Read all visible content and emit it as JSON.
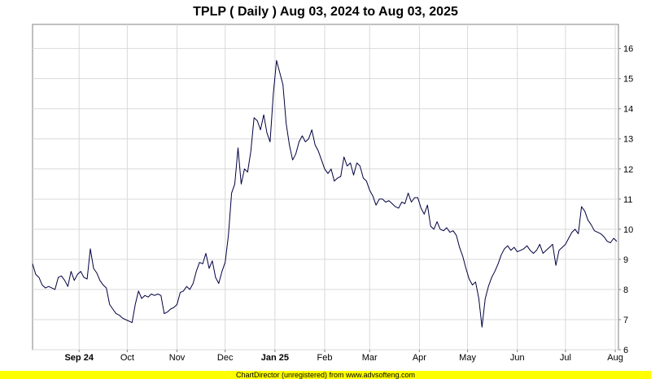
{
  "chart_data": {
    "type": "line",
    "title": "TPLP ( Daily ) Aug 03, 2024 to Aug 03, 2025",
    "xlabel": "",
    "ylabel": "",
    "ylim": [
      6,
      16.8
    ],
    "xlim": [
      "2024-08-03",
      "2025-08-03"
    ],
    "yticks": [
      "6",
      "7",
      "8",
      "9",
      "10",
      "11",
      "12",
      "13",
      "14",
      "15",
      "16"
    ],
    "xticks": [
      {
        "label": "Sep 24",
        "date": "2024-09-01",
        "bold": true
      },
      {
        "label": "Oct",
        "date": "2024-10-01",
        "bold": false
      },
      {
        "label": "Nov",
        "date": "2024-11-01",
        "bold": false
      },
      {
        "label": "Dec",
        "date": "2024-12-01",
        "bold": false
      },
      {
        "label": "Jan 25",
        "date": "2025-01-01",
        "bold": true
      },
      {
        "label": "Feb",
        "date": "2025-02-01",
        "bold": false
      },
      {
        "label": "Mar",
        "date": "2025-03-01",
        "bold": false
      },
      {
        "label": "Apr",
        "date": "2025-04-01",
        "bold": false
      },
      {
        "label": "May",
        "date": "2025-05-01",
        "bold": false
      },
      {
        "label": "Jun",
        "date": "2025-06-01",
        "bold": false
      },
      {
        "label": "Jul",
        "date": "2025-07-01",
        "bold": false
      },
      {
        "label": "Aug",
        "date": "2025-08-01",
        "bold": false
      }
    ],
    "grid": true,
    "line_color": "#000040",
    "series": [
      {
        "name": "",
        "x": [
          "2024-08-03",
          "2024-08-05",
          "2024-08-07",
          "2024-08-09",
          "2024-08-11",
          "2024-08-13",
          "2024-08-15",
          "2024-08-17",
          "2024-08-19",
          "2024-08-21",
          "2024-08-23",
          "2024-08-25",
          "2024-08-27",
          "2024-08-29",
          "2024-08-31",
          "2024-09-02",
          "2024-09-04",
          "2024-09-06",
          "2024-09-08",
          "2024-09-10",
          "2024-09-12",
          "2024-09-14",
          "2024-09-16",
          "2024-09-18",
          "2024-09-20",
          "2024-09-22",
          "2024-09-24",
          "2024-09-26",
          "2024-09-28",
          "2024-09-30",
          "2024-10-02",
          "2024-10-04",
          "2024-10-06",
          "2024-10-08",
          "2024-10-10",
          "2024-10-12",
          "2024-10-14",
          "2024-10-16",
          "2024-10-18",
          "2024-10-20",
          "2024-10-22",
          "2024-10-24",
          "2024-10-26",
          "2024-10-28",
          "2024-10-30",
          "2024-11-01",
          "2024-11-03",
          "2024-11-05",
          "2024-11-07",
          "2024-11-09",
          "2024-11-11",
          "2024-11-13",
          "2024-11-15",
          "2024-11-17",
          "2024-11-19",
          "2024-11-21",
          "2024-11-23",
          "2024-11-25",
          "2024-11-27",
          "2024-11-29",
          "2024-12-01",
          "2024-12-03",
          "2024-12-05",
          "2024-12-07",
          "2024-12-09",
          "2024-12-11",
          "2024-12-13",
          "2024-12-15",
          "2024-12-17",
          "2024-12-19",
          "2024-12-21",
          "2024-12-23",
          "2024-12-25",
          "2024-12-27",
          "2024-12-29",
          "2024-12-31",
          "2025-01-02",
          "2025-01-04",
          "2025-01-06",
          "2025-01-08",
          "2025-01-10",
          "2025-01-12",
          "2025-01-14",
          "2025-01-16",
          "2025-01-18",
          "2025-01-20",
          "2025-01-22",
          "2025-01-24",
          "2025-01-26",
          "2025-01-28",
          "2025-01-30",
          "2025-02-01",
          "2025-02-03",
          "2025-02-05",
          "2025-02-07",
          "2025-02-09",
          "2025-02-11",
          "2025-02-13",
          "2025-02-15",
          "2025-02-17",
          "2025-02-19",
          "2025-02-21",
          "2025-02-23",
          "2025-02-25",
          "2025-02-27",
          "2025-03-01",
          "2025-03-03",
          "2025-03-05",
          "2025-03-07",
          "2025-03-09",
          "2025-03-11",
          "2025-03-13",
          "2025-03-15",
          "2025-03-17",
          "2025-03-19",
          "2025-03-21",
          "2025-03-23",
          "2025-03-25",
          "2025-03-27",
          "2025-03-29",
          "2025-03-31",
          "2025-04-02",
          "2025-04-04",
          "2025-04-06",
          "2025-04-08",
          "2025-04-10",
          "2025-04-12",
          "2025-04-14",
          "2025-04-16",
          "2025-04-18",
          "2025-04-20",
          "2025-04-22",
          "2025-04-24",
          "2025-04-26",
          "2025-04-28",
          "2025-04-30",
          "2025-05-02",
          "2025-05-04",
          "2025-05-06",
          "2025-05-08",
          "2025-05-10",
          "2025-05-12",
          "2025-05-14",
          "2025-05-16",
          "2025-05-18",
          "2025-05-20",
          "2025-05-22",
          "2025-05-24",
          "2025-05-26",
          "2025-05-28",
          "2025-05-30",
          "2025-06-01",
          "2025-06-03",
          "2025-06-05",
          "2025-06-07",
          "2025-06-09",
          "2025-06-11",
          "2025-06-13",
          "2025-06-15",
          "2025-06-17",
          "2025-06-19",
          "2025-06-21",
          "2025-06-23",
          "2025-06-25",
          "2025-06-27",
          "2025-06-29",
          "2025-07-01",
          "2025-07-03",
          "2025-07-05",
          "2025-07-07",
          "2025-07-09",
          "2025-07-11",
          "2025-07-13",
          "2025-07-15",
          "2025-07-17",
          "2025-07-19",
          "2025-07-21",
          "2025-07-23",
          "2025-07-25",
          "2025-07-27",
          "2025-07-29",
          "2025-07-31",
          "2025-08-02"
        ],
        "values": [
          8.85,
          8.5,
          8.4,
          8.15,
          8.05,
          8.1,
          8.05,
          8.0,
          8.4,
          8.45,
          8.3,
          8.1,
          8.6,
          8.3,
          8.5,
          8.6,
          8.4,
          8.35,
          9.35,
          8.7,
          8.55,
          8.3,
          8.15,
          8.05,
          7.5,
          7.35,
          7.2,
          7.15,
          7.05,
          7.0,
          6.95,
          6.9,
          7.5,
          7.95,
          7.7,
          7.8,
          7.75,
          7.85,
          7.8,
          7.85,
          7.8,
          7.2,
          7.25,
          7.35,
          7.4,
          7.5,
          7.9,
          7.95,
          8.1,
          8.0,
          8.2,
          8.6,
          8.9,
          8.85,
          9.2,
          8.7,
          8.95,
          8.4,
          8.2,
          8.6,
          8.9,
          9.8,
          11.2,
          11.5,
          12.7,
          11.5,
          12.0,
          11.9,
          12.6,
          13.7,
          13.6,
          13.3,
          13.8,
          13.2,
          12.9,
          14.5,
          15.6,
          15.2,
          14.8,
          13.5,
          12.8,
          12.3,
          12.5,
          12.9,
          13.1,
          12.9,
          13.0,
          13.3,
          12.8,
          12.6,
          12.3,
          12.0,
          11.85,
          12.0,
          11.6,
          11.7,
          11.75,
          12.4,
          12.1,
          12.2,
          11.8,
          12.2,
          12.1,
          11.7,
          11.6,
          11.3,
          11.1,
          10.8,
          11.0,
          11.0,
          10.9,
          10.95,
          10.85,
          10.75,
          10.7,
          10.9,
          10.85,
          11.2,
          10.9,
          11.05,
          11.05,
          10.7,
          10.5,
          10.8,
          10.1,
          10.0,
          10.25,
          10.0,
          9.95,
          10.05,
          9.9,
          9.95,
          9.8,
          9.4,
          9.1,
          8.7,
          8.35,
          8.15,
          8.25,
          7.7,
          6.75,
          7.7,
          8.1,
          8.4,
          8.6,
          8.85,
          9.15,
          9.35,
          9.45,
          9.3,
          9.4,
          9.25,
          9.3,
          9.35,
          9.45,
          9.3,
          9.2,
          9.3,
          9.5,
          9.2,
          9.3,
          9.4,
          9.5,
          8.8,
          9.3,
          9.4,
          9.5,
          9.7,
          9.9,
          10.0,
          9.85,
          10.75,
          10.6,
          10.3,
          10.15,
          9.95,
          9.9,
          9.85,
          9.75,
          9.6,
          9.55,
          9.7,
          9.6
        ]
      }
    ]
  },
  "footer": {
    "text": "ChartDirector (unregistered) from www.advsofteng.com",
    "background": "#ffff00"
  }
}
